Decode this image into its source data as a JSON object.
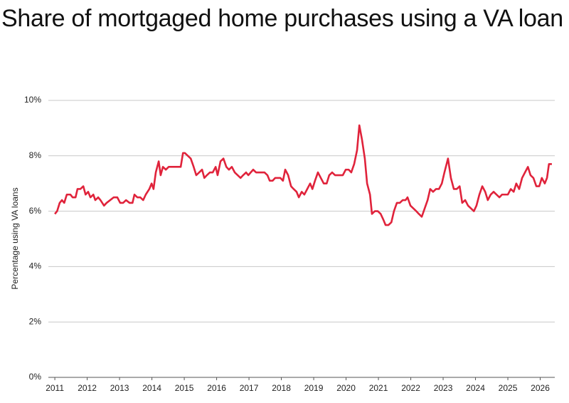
{
  "chart_data": {
    "type": "line",
    "title": "Share of mortgaged home purchases using a VA loan",
    "y_label": "Percentage using VA loans",
    "xlim": [
      2010.8,
      2026.45
    ],
    "xticks": [
      2011,
      2012,
      2013,
      2014,
      2015,
      2016,
      2017,
      2018,
      2019,
      2020,
      2021,
      2022,
      2023,
      2024,
      2025,
      2026
    ],
    "ylim": [
      0,
      10
    ],
    "yticks": [
      {
        "value": 0,
        "label": "0%"
      },
      {
        "value": 2,
        "label": "2%"
      },
      {
        "value": 4,
        "label": "4%"
      },
      {
        "value": 6,
        "label": "6%"
      },
      {
        "value": 8,
        "label": "8%"
      },
      {
        "value": 10,
        "label": "10%"
      }
    ],
    "grid": true,
    "series": [
      {
        "color": "#e0233b",
        "x": [
          2011.0,
          2011.07,
          2011.15,
          2011.22,
          2011.29,
          2011.37,
          2011.48,
          2011.55,
          2011.64,
          2011.7,
          2011.79,
          2011.88,
          2011.95,
          2012.03,
          2012.1,
          2012.19,
          2012.25,
          2012.34,
          2012.41,
          2012.52,
          2012.6,
          2012.71,
          2012.82,
          2012.93,
          2013.02,
          2013.11,
          2013.2,
          2013.31,
          2013.4,
          2013.46,
          2013.55,
          2013.64,
          2013.73,
          2013.81,
          2013.92,
          2013.99,
          2014.05,
          2014.12,
          2014.21,
          2014.27,
          2014.34,
          2014.43,
          2014.52,
          2014.89,
          2014.96,
          2015.02,
          2015.11,
          2015.2,
          2015.29,
          2015.37,
          2015.46,
          2015.55,
          2015.62,
          2015.7,
          2015.79,
          2015.88,
          2015.97,
          2016.03,
          2016.12,
          2016.21,
          2016.3,
          2016.38,
          2016.47,
          2016.56,
          2016.65,
          2016.74,
          2016.82,
          2016.91,
          2016.98,
          2017.13,
          2017.22,
          2017.48,
          2017.57,
          2017.64,
          2017.73,
          2017.81,
          2017.97,
          2018.05,
          2018.12,
          2018.21,
          2018.3,
          2018.38,
          2018.47,
          2018.54,
          2018.63,
          2018.71,
          2018.8,
          2018.89,
          2018.96,
          2019.04,
          2019.13,
          2019.22,
          2019.31,
          2019.4,
          2019.48,
          2019.57,
          2019.66,
          2019.9,
          2019.99,
          2020.08,
          2020.16,
          2020.25,
          2020.34,
          2020.41,
          2020.49,
          2020.58,
          2020.65,
          2020.74,
          2020.8,
          2020.89,
          2020.98,
          2021.07,
          2021.15,
          2021.22,
          2021.31,
          2021.4,
          2021.48,
          2021.57,
          2021.66,
          2021.75,
          2021.84,
          2021.9,
          2021.99,
          2022.08,
          2022.17,
          2022.25,
          2022.34,
          2022.43,
          2022.52,
          2022.6,
          2022.69,
          2022.78,
          2022.87,
          2022.96,
          2023.04,
          2023.15,
          2023.24,
          2023.33,
          2023.42,
          2023.51,
          2023.59,
          2023.68,
          2023.77,
          2023.86,
          2023.95,
          2024.03,
          2024.12,
          2024.21,
          2024.3,
          2024.38,
          2024.47,
          2024.56,
          2024.65,
          2024.74,
          2024.82,
          2025.0,
          2025.09,
          2025.18,
          2025.26,
          2025.35,
          2025.44,
          2025.53,
          2025.62,
          2025.7,
          2025.79,
          2025.88,
          2025.97,
          2026.05,
          2026.14,
          2026.21,
          2026.27,
          2026.36
        ],
        "values": [
          5.9,
          6.0,
          6.3,
          6.4,
          6.3,
          6.6,
          6.6,
          6.5,
          6.5,
          6.8,
          6.8,
          6.9,
          6.6,
          6.7,
          6.5,
          6.6,
          6.4,
          6.5,
          6.4,
          6.2,
          6.3,
          6.4,
          6.5,
          6.5,
          6.3,
          6.3,
          6.4,
          6.3,
          6.3,
          6.6,
          6.5,
          6.5,
          6.4,
          6.6,
          6.8,
          7.0,
          6.8,
          7.4,
          7.8,
          7.3,
          7.6,
          7.5,
          7.6,
          7.6,
          8.1,
          8.1,
          8.0,
          7.9,
          7.6,
          7.3,
          7.4,
          7.5,
          7.2,
          7.3,
          7.4,
          7.4,
          7.6,
          7.3,
          7.8,
          7.9,
          7.6,
          7.5,
          7.6,
          7.4,
          7.3,
          7.2,
          7.3,
          7.4,
          7.3,
          7.5,
          7.4,
          7.4,
          7.3,
          7.1,
          7.1,
          7.2,
          7.2,
          7.1,
          7.5,
          7.3,
          6.9,
          6.8,
          6.7,
          6.5,
          6.7,
          6.6,
          6.8,
          7.0,
          6.8,
          7.1,
          7.4,
          7.2,
          7.0,
          7.0,
          7.3,
          7.4,
          7.3,
          7.3,
          7.5,
          7.5,
          7.4,
          7.7,
          8.2,
          9.1,
          8.6,
          7.9,
          7.0,
          6.6,
          5.9,
          6.0,
          6.0,
          5.9,
          5.7,
          5.5,
          5.5,
          5.6,
          6.0,
          6.3,
          6.3,
          6.4,
          6.4,
          6.5,
          6.2,
          6.1,
          6.0,
          5.9,
          5.8,
          6.1,
          6.4,
          6.8,
          6.7,
          6.8,
          6.8,
          7.0,
          7.4,
          7.9,
          7.2,
          6.8,
          6.8,
          6.9,
          6.3,
          6.4,
          6.2,
          6.1,
          6.0,
          6.2,
          6.6,
          6.9,
          6.7,
          6.4,
          6.6,
          6.7,
          6.6,
          6.5,
          6.6,
          6.6,
          6.8,
          6.7,
          7.0,
          6.8,
          7.2,
          7.4,
          7.6,
          7.3,
          7.2,
          6.9,
          6.9,
          7.2,
          7.0,
          7.2,
          7.7,
          7.7
        ]
      }
    ]
  }
}
